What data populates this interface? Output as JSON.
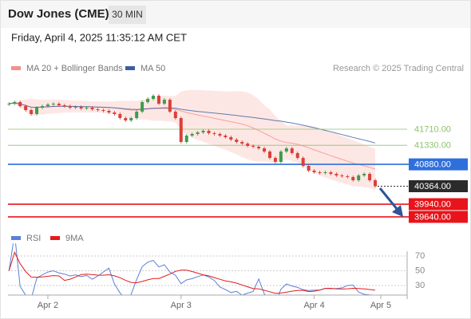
{
  "header": {
    "title": "Dow Jones (CME)",
    "timeframe": "30 MIN",
    "datetime": "Friday, April 4, 2025 11:35:12 AM CET",
    "credit": "Research © 2025 Trading Central"
  },
  "chart_data": [
    {
      "type": "candlestick",
      "categories": [
        null,
        null,
        null,
        null,
        null,
        null,
        null,
        "Apr 2",
        null,
        null,
        null,
        null,
        null,
        null,
        null,
        null,
        null,
        null,
        null,
        null,
        null,
        null,
        null,
        null,
        null,
        null,
        null,
        null,
        null,
        null,
        null,
        "Apr 3",
        null,
        null,
        null,
        null,
        null,
        null,
        null,
        null,
        null,
        null,
        null,
        null,
        null,
        null,
        null,
        null,
        null,
        null,
        null,
        null,
        null,
        null,
        null,
        "Apr 4",
        null,
        null,
        null,
        null,
        null,
        null,
        null,
        null,
        null,
        null,
        null,
        "Apr 5"
      ],
      "values": [
        42312,
        42350,
        42256,
        42162,
        42068,
        42218,
        42256,
        42293,
        42312,
        42275,
        42256,
        42218,
        42237,
        42199,
        42218,
        42180,
        42162,
        42143,
        42105,
        42068,
        41973,
        41917,
        41973,
        42124,
        42350,
        42425,
        42500,
        42312,
        42406,
        42124,
        41973,
        41409,
        41559,
        41597,
        41635,
        41672,
        41616,
        41597,
        41559,
        41522,
        41465,
        41409,
        41371,
        41315,
        41296,
        41258,
        41183,
        41032,
        40938,
        41183,
        41258,
        41146,
        41032,
        40844,
        40731,
        40694,
        40675,
        40694,
        40656,
        40618,
        40600,
        40581,
        40505,
        40618,
        40656,
        40505,
        40364,
        null
      ],
      "up_color": "#3f9b4c",
      "down_color": "#d9403a",
      "indicators": [
        {
          "name": "MA 20 + Bollinger Bands",
          "color": "#f4908a"
        },
        {
          "name": "MA 50",
          "color": "#3b5f9e"
        }
      ],
      "ylim": [
        39400,
        43000
      ],
      "levels": [
        {
          "value": 41710,
          "label": "41710.00",
          "color": "#8cc46c",
          "box": false
        },
        {
          "value": 41330,
          "label": "41330.00",
          "color": "#8cc46c",
          "box": false
        },
        {
          "value": 40880,
          "label": "40880.00",
          "color": "#2f6fdc",
          "box": true
        },
        {
          "value": 40364,
          "label": "40364.00",
          "color": "#2b2b2b",
          "box": true,
          "dashed": true
        },
        {
          "value": 39940,
          "label": "39940.00",
          "color": "#e8141b",
          "box": true
        },
        {
          "value": 39640,
          "label": "39640.00",
          "color": "#e8141b",
          "box": true
        }
      ]
    },
    {
      "type": "line",
      "series": [
        {
          "name": "RSI",
          "color": "#5b80d8"
        },
        {
          "name": "9MA",
          "color": "#e41b1b"
        }
      ],
      "ylim": [
        17,
        87
      ],
      "yticks": [
        70,
        50,
        30
      ]
    }
  ]
}
